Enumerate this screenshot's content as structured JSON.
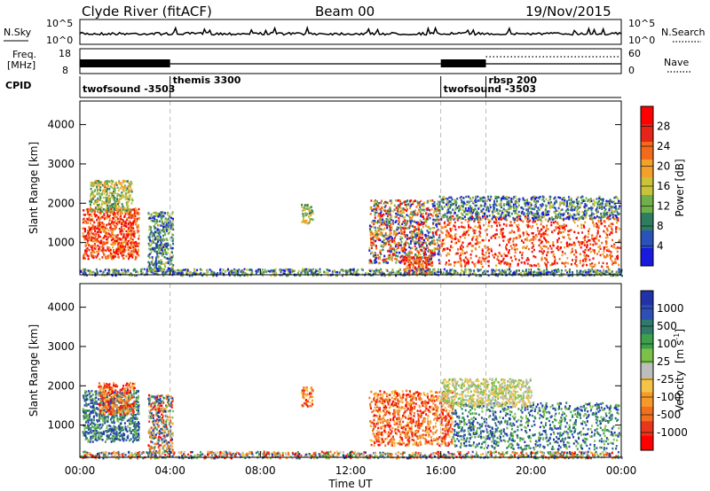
{
  "header": {
    "title": "Clyde River (fitACF)",
    "beam": "Beam 00",
    "date": "19/Nov/2015"
  },
  "top_panels": {
    "nsky_label": "N.Sky",
    "nsky_ticks": [
      "10^5",
      "10^0"
    ],
    "nsearch_ticks": [
      "10^5",
      "10^0"
    ],
    "nsearch_label": "N.Search",
    "freq_label_top": "Freq.",
    "freq_label_bottom": "[MHz]",
    "freq_ticks": [
      "18",
      "8"
    ],
    "nave_ticks": [
      "60",
      "0"
    ],
    "nave_label": "Nave",
    "cpid_label": "CPID",
    "cpid_segments": [
      {
        "name": "twofsound -3503",
        "start": 0.0,
        "end": 4.0
      },
      {
        "name": "themis 3300",
        "start": 4.0,
        "end": 16.0
      },
      {
        "name": "twofsound -3503",
        "start": 16.0,
        "end": 18.0
      },
      {
        "name": "rbsp 200",
        "start": 18.0,
        "end": 24.0
      }
    ]
  },
  "axes": {
    "x_ticks": [
      "00:00",
      "04:00",
      "08:00",
      "12:00",
      "16:00",
      "20:00",
      "00:00"
    ],
    "x_label": "Time UT",
    "y_label": "Slant Range [km]",
    "y_ticks": [
      "1000",
      "2000",
      "3000",
      "4000"
    ]
  },
  "colorbars": {
    "power": {
      "label": "Power [dB]",
      "ticks": [
        "4",
        "8",
        "12",
        "16",
        "20",
        "24",
        "28"
      ],
      "colors": [
        "#1919e0",
        "#2a52b8",
        "#2e7d60",
        "#6fb04a",
        "#c9c23a",
        "#f3a12a",
        "#f26a1b",
        "#e5241a",
        "#ff0000"
      ]
    },
    "velocity": {
      "label_main": "Velocity",
      "label_unit": "[m s",
      "label_exp": "-1",
      "label_close": "]",
      "ticks": [
        "1000",
        "500",
        "100",
        "25",
        "-25",
        "-100",
        "-500",
        "-1000"
      ],
      "colors": [
        "#2233aa",
        "#2e4fb5",
        "#2f7a6a",
        "#3da04a",
        "#7cc04a",
        "#bdbdbd",
        "#f5c34a",
        "#f59a2a",
        "#f07020",
        "#e8361c",
        "#ff0000"
      ]
    }
  },
  "chart_data": {
    "type": "heatmap",
    "x_range_hours": [
      0,
      24
    ],
    "y_range_km": [
      180,
      4600
    ],
    "vertical_markers_hours": [
      4,
      16,
      18
    ],
    "power_regions": [
      {
        "t0": 0.1,
        "t1": 2.6,
        "r0": 600,
        "r1": 1900,
        "level": "high"
      },
      {
        "t0": 0.4,
        "t1": 2.3,
        "r0": 1800,
        "r1": 2600,
        "level": "mid"
      },
      {
        "t0": 3.0,
        "t1": 4.1,
        "r0": 300,
        "r1": 1800,
        "level": "low"
      },
      {
        "t0": 9.8,
        "t1": 10.3,
        "r0": 1500,
        "r1": 2000,
        "level": "mid"
      },
      {
        "t0": 12.8,
        "t1": 15.9,
        "r0": 500,
        "r1": 2100,
        "level": "mixed"
      },
      {
        "t0": 14.3,
        "t1": 15.6,
        "r0": 200,
        "r1": 700,
        "level": "high"
      },
      {
        "t0": 15.9,
        "t1": 23.9,
        "r0": 400,
        "r1": 1700,
        "level": "high"
      },
      {
        "t0": 15.9,
        "t1": 23.9,
        "r0": 1600,
        "r1": 2200,
        "level": "low"
      },
      {
        "t0": 0.0,
        "t1": 24.0,
        "r0": 180,
        "r1": 350,
        "level": "low"
      }
    ],
    "velocity_regions": [
      {
        "t0": 0.1,
        "t1": 2.6,
        "r0": 600,
        "r1": 1900,
        "sign": "positive"
      },
      {
        "t0": 0.8,
        "t1": 2.4,
        "r0": 1300,
        "r1": 2100,
        "sign": "negative"
      },
      {
        "t0": 3.0,
        "t1": 4.1,
        "r0": 300,
        "r1": 1800,
        "sign": "mixed"
      },
      {
        "t0": 9.8,
        "t1": 10.3,
        "r0": 1500,
        "r1": 2000,
        "sign": "negative"
      },
      {
        "t0": 12.8,
        "t1": 16.5,
        "r0": 500,
        "r1": 1900,
        "sign": "negative"
      },
      {
        "t0": 16.5,
        "t1": 23.9,
        "r0": 400,
        "r1": 1600,
        "sign": "positive"
      },
      {
        "t0": 16.0,
        "t1": 20.0,
        "r0": 1500,
        "r1": 2200,
        "sign": "near-zero"
      },
      {
        "t0": 0.0,
        "t1": 24.0,
        "r0": 180,
        "r1": 350,
        "sign": "mixed"
      }
    ]
  }
}
